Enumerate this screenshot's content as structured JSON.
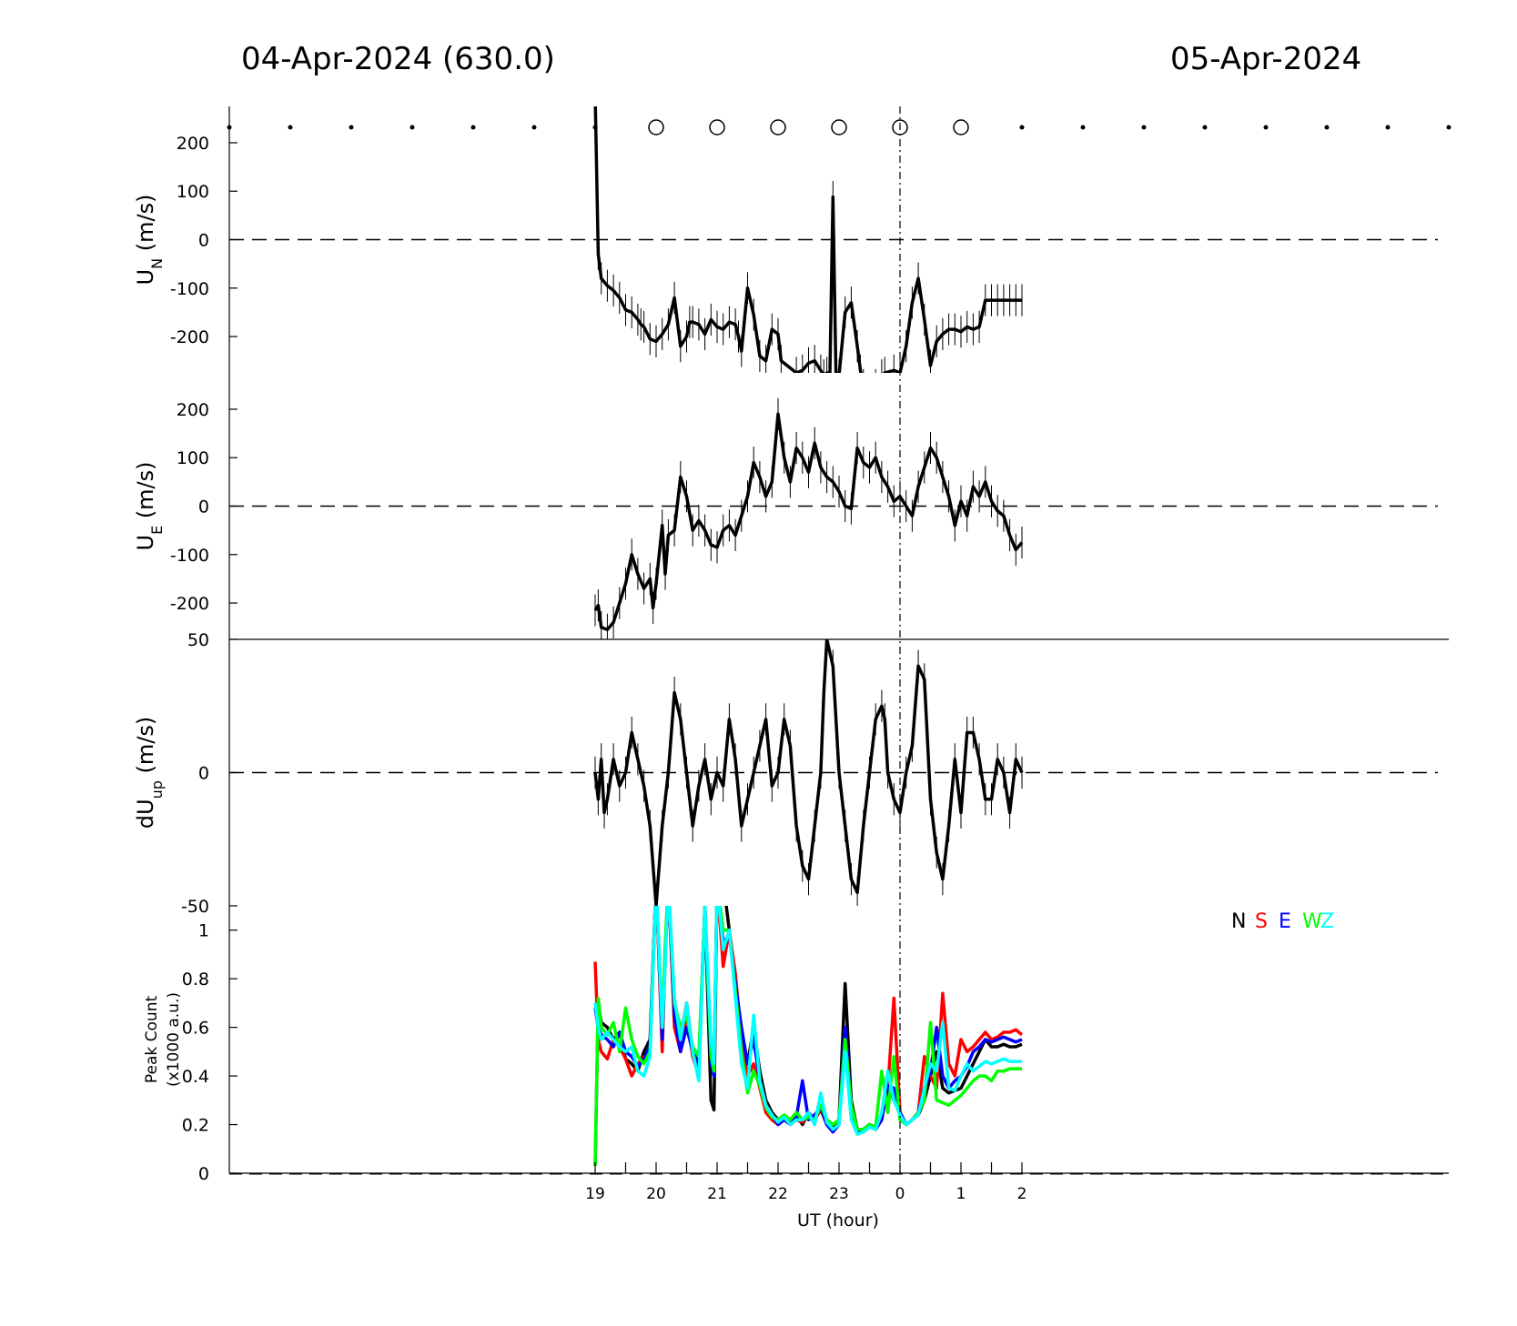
{
  "header": {
    "left_title": "04-Apr-2024 (630.0)",
    "right_title": "05-Apr-2024"
  },
  "legend": [
    {
      "label": "N",
      "color": "#000000"
    },
    {
      "label": "S",
      "color": "#ff0000"
    },
    {
      "label": "E",
      "color": "#0000ff"
    },
    {
      "label": "W",
      "color": "#00ff00"
    },
    {
      "label": "Z",
      "color": "#00ffff"
    }
  ],
  "x_axis": {
    "xlabel": "UT (hour)",
    "tick_labels": [
      "19",
      "20",
      "21",
      "22",
      "23",
      "0",
      "1",
      "2"
    ]
  },
  "chart_data": [
    {
      "type": "line",
      "panel": "UN",
      "ylabel_main": "U",
      "ylabel_sub": "N",
      "ylabel_unit": " (m/s)",
      "ylim": [
        -275,
        275
      ],
      "yticks": [
        200,
        100,
        0,
        -100,
        -200
      ],
      "ytick_labels": [
        "200",
        "100",
        "0",
        "-100",
        "-200"
      ],
      "x_hours": [
        19.0,
        19.05,
        19.1,
        19.2,
        19.3,
        19.4,
        19.5,
        19.6,
        19.7,
        19.75,
        19.8,
        19.9,
        20.0,
        20.1,
        20.2,
        20.3,
        20.4,
        20.5,
        20.55,
        20.6,
        20.7,
        20.8,
        20.9,
        21.0,
        21.1,
        21.2,
        21.3,
        21.35,
        21.4,
        21.5,
        21.6,
        21.7,
        21.8,
        21.9,
        22.0,
        22.05,
        22.3,
        22.4,
        22.5,
        22.6,
        22.7,
        22.75,
        22.8,
        22.85,
        22.9,
        22.95,
        23.0,
        23.1,
        23.2,
        23.3,
        23.35,
        23.4,
        23.5,
        23.6,
        23.7,
        23.75,
        23.9,
        24.0,
        24.1,
        24.2,
        24.3,
        24.4,
        24.5,
        24.6,
        24.7,
        24.8,
        24.9,
        25.0,
        25.1,
        25.2,
        25.3,
        25.4,
        25.5,
        25.6,
        25.7,
        25.8,
        25.9,
        26.0
      ],
      "values": [
        300,
        -30,
        -80,
        -95,
        -105,
        -120,
        -145,
        -150,
        -165,
        -175,
        -180,
        -205,
        -210,
        -195,
        -175,
        -120,
        -220,
        -200,
        -170,
        -170,
        -175,
        -195,
        -165,
        -180,
        -185,
        -170,
        -175,
        -200,
        -230,
        -100,
        -155,
        -240,
        -250,
        -185,
        -195,
        -250,
        -275,
        -270,
        -255,
        -250,
        -270,
        -280,
        -275,
        -275,
        88,
        -275,
        -280,
        -150,
        -130,
        -220,
        -270,
        -300,
        -310,
        -300,
        -280,
        -275,
        -270,
        -275,
        -220,
        -130,
        -80,
        -165,
        -260,
        -210,
        -195,
        -185,
        -185,
        -190,
        -180,
        -185,
        -180,
        -125,
        -125,
        -125,
        -125,
        -125,
        -125,
        -125
      ],
      "values_shown": "to 26.0"
    },
    {
      "type": "line",
      "panel": "UE",
      "ylabel_main": "U",
      "ylabel_sub": "E",
      "ylabel_unit": " (m/s)",
      "ylim": [
        -275,
        275
      ],
      "yticks": [
        200,
        100,
        0,
        -100,
        -200
      ],
      "ytick_labels": [
        "200",
        "100",
        "0",
        "-100",
        "-200"
      ],
      "x_hours": [
        19.0,
        19.05,
        19.1,
        19.2,
        19.3,
        19.4,
        19.5,
        19.6,
        19.7,
        19.8,
        19.9,
        19.95,
        20.0,
        20.1,
        20.15,
        20.2,
        20.3,
        20.4,
        20.5,
        20.6,
        20.7,
        20.8,
        20.9,
        21.0,
        21.1,
        21.2,
        21.3,
        21.4,
        21.5,
        21.6,
        21.7,
        21.8,
        21.9,
        22.0,
        22.1,
        22.2,
        22.3,
        22.4,
        22.5,
        22.6,
        22.7,
        22.8,
        22.9,
        23.0,
        23.1,
        23.2,
        23.3,
        23.4,
        23.5,
        23.6,
        23.7,
        23.8,
        23.9,
        24.0,
        24.1,
        24.2,
        24.3,
        24.4,
        24.5,
        24.6,
        24.7,
        24.8,
        24.9,
        25.0,
        25.1,
        25.2,
        25.3,
        25.4,
        25.5,
        25.6,
        25.7,
        25.8,
        25.9,
        26.0
      ],
      "values": [
        -215,
        -205,
        -250,
        -255,
        -240,
        -200,
        -160,
        -100,
        -140,
        -170,
        -150,
        -210,
        -160,
        -40,
        -140,
        -60,
        -50,
        60,
        20,
        -50,
        -30,
        -50,
        -80,
        -85,
        -50,
        -40,
        -60,
        -20,
        20,
        90,
        60,
        20,
        50,
        190,
        100,
        50,
        120,
        100,
        70,
        130,
        80,
        60,
        50,
        30,
        0,
        -5,
        120,
        90,
        80,
        100,
        60,
        40,
        10,
        20,
        0,
        -20,
        40,
        80,
        120,
        100,
        60,
        20,
        -40,
        10,
        -20,
        40,
        20,
        50,
        10,
        -10,
        -20,
        -60,
        -90,
        -75
      ],
      "values_shown": "to 26.0"
    },
    {
      "type": "line",
      "panel": "dUup",
      "ylabel_main": "dU",
      "ylabel_sub": "up",
      "ylabel_unit": " (m/s)",
      "ylim": [
        -50,
        50
      ],
      "yticks": [
        50,
        0,
        -50
      ],
      "ytick_labels": [
        "50",
        "0",
        "-50"
      ],
      "x_hours": [
        19.0,
        19.05,
        19.1,
        19.15,
        19.2,
        19.3,
        19.4,
        19.5,
        19.6,
        19.7,
        19.8,
        19.9,
        20.0,
        20.1,
        20.2,
        20.3,
        20.4,
        20.5,
        20.6,
        20.7,
        20.8,
        20.9,
        21.0,
        21.1,
        21.2,
        21.3,
        21.4,
        21.5,
        21.6,
        21.7,
        21.8,
        21.9,
        22.0,
        22.1,
        22.2,
        22.3,
        22.4,
        22.5,
        22.6,
        22.7,
        22.75,
        22.8,
        22.9,
        23.0,
        23.1,
        23.2,
        23.3,
        23.4,
        23.5,
        23.6,
        23.7,
        23.75,
        23.8,
        23.9,
        24.0,
        24.1,
        24.2,
        24.3,
        24.4,
        24.5,
        24.6,
        24.7,
        24.8,
        24.9,
        25.0,
        25.1,
        25.2,
        25.3,
        25.4,
        25.5,
        25.6,
        25.7,
        25.8,
        25.9,
        26.0
      ],
      "values": [
        0,
        -10,
        5,
        -15,
        -10,
        5,
        -5,
        0,
        15,
        5,
        -5,
        -20,
        -50,
        -20,
        0,
        30,
        20,
        0,
        -20,
        -5,
        5,
        -10,
        0,
        -5,
        20,
        5,
        -20,
        -10,
        0,
        10,
        20,
        -5,
        0,
        20,
        10,
        -20,
        -35,
        -40,
        -20,
        0,
        30,
        50,
        40,
        0,
        -20,
        -40,
        -45,
        -20,
        0,
        20,
        25,
        20,
        0,
        -10,
        -15,
        0,
        10,
        40,
        35,
        -10,
        -30,
        -40,
        -20,
        5,
        -15,
        15,
        15,
        5,
        -10,
        -10,
        5,
        0,
        -15,
        5,
        0
      ]
    },
    {
      "type": "line",
      "panel": "PeakCount",
      "ylabel_line1": "Peak Count",
      "ylabel_line2": "(x1000 a.u.)",
      "ylim": [
        0,
        1.1
      ],
      "yticks": [
        1,
        0.8,
        0.6,
        0.4,
        0.2,
        0
      ],
      "ytick_labels": [
        "1",
        "0.8",
        "0.6",
        "0.4",
        "0.2",
        "0"
      ],
      "x_hours": [
        19.0,
        19.05,
        19.1,
        19.2,
        19.3,
        19.4,
        19.5,
        19.6,
        19.7,
        19.8,
        19.9,
        20.0,
        20.1,
        20.15,
        20.2,
        20.3,
        20.4,
        20.5,
        20.6,
        20.7,
        20.8,
        20.9,
        20.95,
        21.0,
        21.1,
        21.2,
        21.3,
        21.4,
        21.5,
        21.6,
        21.7,
        21.8,
        21.9,
        22.0,
        22.1,
        22.2,
        22.3,
        22.4,
        22.5,
        22.6,
        22.7,
        22.8,
        22.9,
        23.0,
        23.1,
        23.2,
        23.3,
        23.4,
        23.5,
        23.6,
        23.7,
        23.8,
        23.9,
        24.0,
        24.1,
        24.2,
        24.3,
        24.4,
        24.5,
        24.6,
        24.7,
        24.8,
        24.9,
        25.0,
        25.1,
        25.2,
        25.3,
        25.4,
        25.5,
        25.6,
        25.7,
        25.8,
        25.9,
        26.0
      ],
      "series": [
        {
          "name": "N",
          "color": "#000000",
          "values": [
            0.03,
            0.7,
            0.62,
            0.6,
            0.55,
            0.58,
            0.47,
            0.45,
            0.42,
            0.5,
            0.55,
            1.2,
            0.55,
            0.9,
            1.2,
            0.62,
            0.55,
            0.7,
            0.5,
            0.45,
            1.1,
            0.3,
            0.26,
            1.2,
            1.2,
            1.0,
            0.8,
            0.5,
            0.45,
            0.6,
            0.42,
            0.3,
            0.25,
            0.22,
            0.22,
            0.21,
            0.24,
            0.2,
            0.25,
            0.22,
            0.28,
            0.2,
            0.19,
            0.22,
            0.78,
            0.3,
            0.18,
            0.18,
            0.2,
            0.19,
            0.22,
            0.38,
            0.3,
            0.25,
            0.2,
            0.22,
            0.24,
            0.3,
            0.4,
            0.5,
            0.35,
            0.33,
            0.34,
            0.35,
            0.4,
            0.45,
            0.5,
            0.55,
            0.52,
            0.52,
            0.53,
            0.52,
            0.52,
            0.53
          ]
        },
        {
          "name": "S",
          "color": "#ff0000",
          "values": [
            0.87,
            0.55,
            0.5,
            0.47,
            0.55,
            0.52,
            0.47,
            0.4,
            0.45,
            0.48,
            0.5,
            1.2,
            0.5,
            0.9,
            1.2,
            0.6,
            0.5,
            0.65,
            0.48,
            0.4,
            1.1,
            0.5,
            0.45,
            1.2,
            0.85,
            1.0,
            0.82,
            0.55,
            0.4,
            0.45,
            0.35,
            0.25,
            0.22,
            0.2,
            0.22,
            0.2,
            0.22,
            0.21,
            0.25,
            0.22,
            0.26,
            0.2,
            0.17,
            0.21,
            0.6,
            0.25,
            0.17,
            0.17,
            0.2,
            0.18,
            0.22,
            0.35,
            0.72,
            0.25,
            0.2,
            0.22,
            0.25,
            0.48,
            0.4,
            0.35,
            0.74,
            0.45,
            0.4,
            0.55,
            0.5,
            0.52,
            0.55,
            0.58,
            0.55,
            0.56,
            0.58,
            0.58,
            0.59,
            0.57
          ]
        },
        {
          "name": "E",
          "color": "#0000ff",
          "values": [
            0.68,
            0.6,
            0.57,
            0.55,
            0.52,
            0.58,
            0.5,
            0.48,
            0.44,
            0.47,
            0.52,
            1.2,
            0.55,
            0.9,
            1.2,
            0.65,
            0.5,
            0.6,
            0.5,
            0.43,
            1.1,
            0.45,
            0.4,
            1.2,
            0.95,
            0.98,
            0.78,
            0.6,
            0.45,
            0.55,
            0.38,
            0.28,
            0.24,
            0.2,
            0.22,
            0.2,
            0.23,
            0.38,
            0.22,
            0.24,
            0.27,
            0.2,
            0.17,
            0.2,
            0.6,
            0.28,
            0.17,
            0.18,
            0.2,
            0.18,
            0.22,
            0.36,
            0.35,
            0.25,
            0.2,
            0.22,
            0.25,
            0.35,
            0.42,
            0.6,
            0.4,
            0.35,
            0.38,
            0.4,
            0.44,
            0.5,
            0.52,
            0.55,
            0.54,
            0.55,
            0.56,
            0.55,
            0.54,
            0.55
          ]
        },
        {
          "name": "W",
          "color": "#00ff00",
          "values": [
            0.03,
            0.72,
            0.6,
            0.57,
            0.62,
            0.5,
            0.68,
            0.55,
            0.48,
            0.45,
            0.5,
            1.2,
            0.6,
            0.95,
            1.2,
            0.7,
            0.6,
            0.65,
            0.52,
            0.48,
            1.1,
            0.48,
            0.42,
            1.2,
            1.0,
            1.0,
            0.75,
            0.5,
            0.33,
            0.42,
            0.36,
            0.27,
            0.23,
            0.22,
            0.24,
            0.22,
            0.25,
            0.22,
            0.23,
            0.22,
            0.28,
            0.22,
            0.2,
            0.22,
            0.55,
            0.28,
            0.18,
            0.18,
            0.2,
            0.19,
            0.42,
            0.25,
            0.48,
            0.22,
            0.2,
            0.22,
            0.25,
            0.3,
            0.62,
            0.3,
            0.29,
            0.28,
            0.3,
            0.32,
            0.35,
            0.38,
            0.4,
            0.4,
            0.38,
            0.42,
            0.42,
            0.43,
            0.43,
            0.43
          ]
        },
        {
          "name": "Z",
          "color": "#00ffff",
          "values": [
            0.7,
            0.6,
            0.55,
            0.58,
            0.55,
            0.52,
            0.5,
            0.52,
            0.42,
            0.4,
            0.48,
            1.2,
            0.6,
            0.85,
            1.2,
            0.72,
            0.55,
            0.7,
            0.5,
            0.38,
            1.1,
            0.55,
            0.45,
            1.2,
            0.92,
            1.0,
            0.72,
            0.45,
            0.35,
            0.65,
            0.38,
            0.28,
            0.24,
            0.21,
            0.23,
            0.2,
            0.22,
            0.22,
            0.25,
            0.2,
            0.33,
            0.21,
            0.18,
            0.2,
            0.5,
            0.22,
            0.16,
            0.17,
            0.19,
            0.18,
            0.25,
            0.42,
            0.3,
            0.24,
            0.2,
            0.22,
            0.24,
            0.35,
            0.45,
            0.42,
            0.62,
            0.35,
            0.34,
            0.4,
            0.45,
            0.42,
            0.44,
            0.46,
            0.45,
            0.46,
            0.47,
            0.46,
            0.46,
            0.46
          ]
        }
      ]
    }
  ],
  "sky_markers": {
    "x_hours": [
      13,
      14,
      15,
      16,
      17,
      18,
      19,
      20,
      21,
      22,
      23,
      24,
      25,
      26,
      27,
      28,
      29,
      30,
      31,
      32,
      33
    ],
    "kinds": [
      "dot",
      "dot",
      "dot",
      "dot",
      "dot",
      "dot",
      "dot",
      "circle",
      "circle",
      "circle",
      "circle",
      "circle",
      "circle",
      "dot",
      "dot",
      "dot",
      "dot",
      "dot",
      "dot",
      "dot",
      "dot"
    ]
  }
}
